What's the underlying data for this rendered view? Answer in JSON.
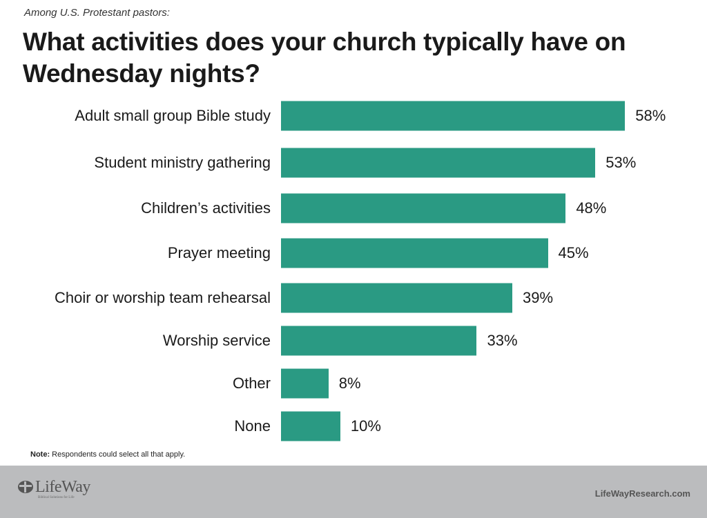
{
  "chart_data": {
    "type": "bar",
    "orientation": "horizontal",
    "subtitle": "Among U.S. Protestant pastors:",
    "title": "What activities does your church typically have on Wednesday nights?",
    "categories": [
      "Adult small group Bible study",
      "Student ministry gathering",
      "Children’s activities",
      "Prayer meeting",
      "Choir or worship team rehearsal",
      "Worship service",
      "Other",
      "None"
    ],
    "values": [
      58,
      53,
      48,
      45,
      39,
      33,
      8,
      10
    ],
    "value_labels": [
      "58%",
      "53%",
      "48%",
      "45%",
      "39%",
      "33%",
      "8%",
      "10%"
    ],
    "unit": "%",
    "xlim": [
      0,
      60
    ],
    "grid": false,
    "bar_color": "#2a9a83"
  },
  "note": {
    "label": "Note:",
    "text": " Respondents could select all that apply."
  },
  "footer": {
    "logo": "LifeWay",
    "logo_tagline": "Biblical Solutions for Life",
    "site": "LifeWayResearch.com",
    "background": "#bbbcbe"
  }
}
